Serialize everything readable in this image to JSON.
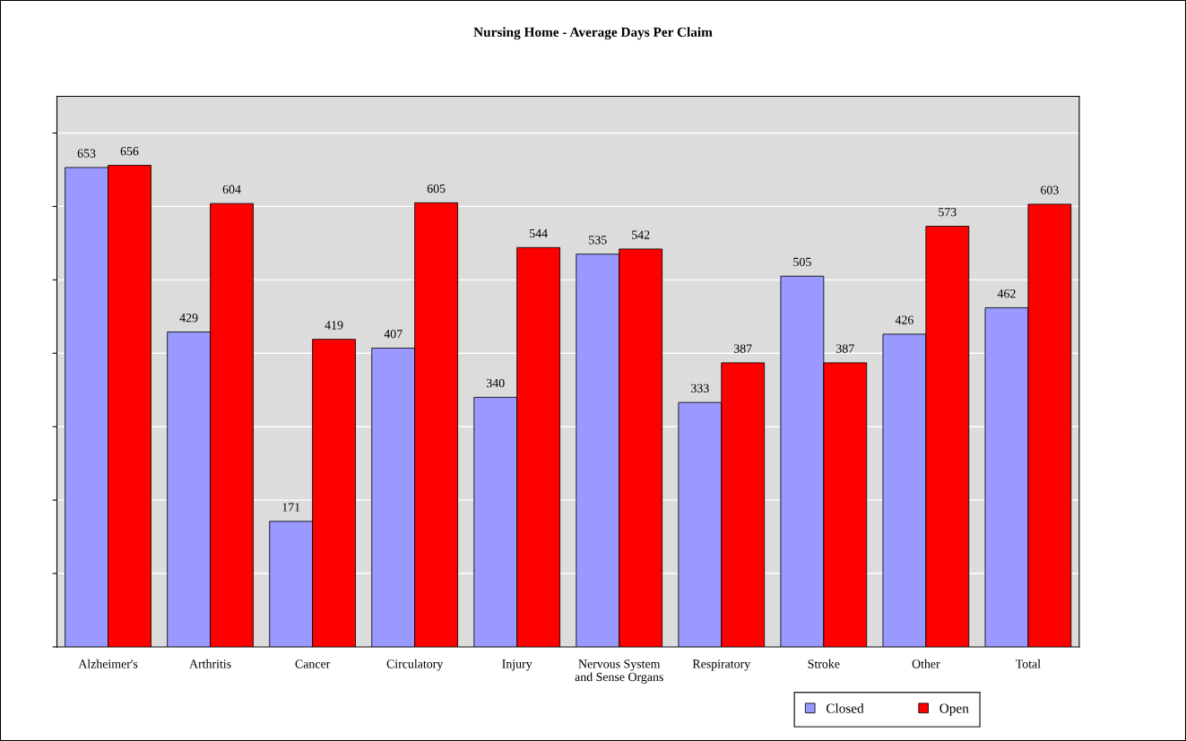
{
  "chart_data": {
    "type": "bar",
    "title": "Nursing Home - Average Days Per Claim",
    "categories": [
      "Alzheimer's",
      "Arthritis",
      "Cancer",
      "Circulatory",
      "Injury",
      "Nervous System\nand Sense Organs",
      "Respiratory",
      "Stroke",
      "Other",
      "Total"
    ],
    "series": [
      {
        "name": "Closed",
        "color": "#9999ff",
        "values": [
          653,
          429,
          171,
          407,
          340,
          535,
          333,
          505,
          426,
          462
        ]
      },
      {
        "name": "Open",
        "color": "#ff0000",
        "values": [
          656,
          604,
          419,
          605,
          544,
          542,
          387,
          387,
          573,
          603
        ]
      }
    ],
    "ylim": [
      0,
      750
    ],
    "yticks": [
      {
        "value": 0,
        "label": null
      },
      {
        "value": 100,
        "label": null
      },
      {
        "value": 200,
        "label": null
      },
      {
        "value": 300,
        "label": null
      },
      {
        "value": 400,
        "label": null
      },
      {
        "value": 500,
        "label": null
      },
      {
        "value": 600,
        "label": null
      },
      {
        "value": 700,
        "label": null
      }
    ],
    "tick_labels": "x",
    "grid": "y",
    "data_labels": true,
    "legend": "bottom"
  }
}
